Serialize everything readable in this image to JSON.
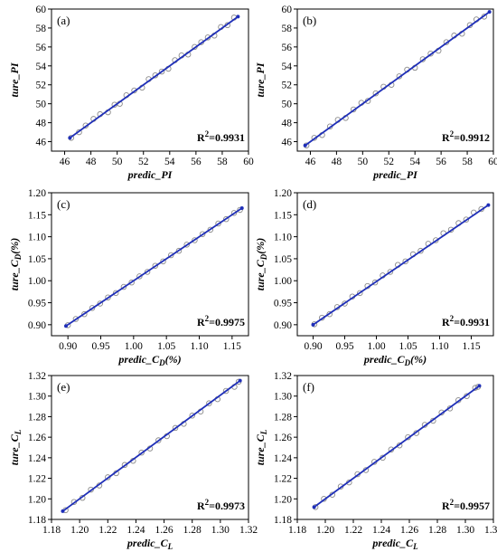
{
  "chart_data": [
    {
      "type": "scatter",
      "label": "(a)",
      "xlabel": "predic_PI",
      "ylabel": "ture_PI",
      "xlim": [
        45,
        60
      ],
      "ylim": [
        45,
        60
      ],
      "xticks": [
        46,
        48,
        50,
        52,
        54,
        56,
        58,
        60
      ],
      "yticks": [
        46,
        48,
        50,
        52,
        54,
        56,
        58,
        60
      ],
      "tick_labels_x": [
        "46",
        "48",
        "50",
        "52",
        "54",
        "56",
        "58",
        "60"
      ],
      "tick_labels_y": [
        "46",
        "48",
        "50",
        "52",
        "54",
        "56",
        "58",
        "60"
      ],
      "fit_line": [
        [
          46.4,
          46.4
        ],
        [
          59.2,
          59.2
        ]
      ],
      "r2_label": "R",
      "r2_sup": "2",
      "r2_value": "=0.9931",
      "grid": false,
      "points": [
        [
          46.5,
          46.4
        ],
        [
          47.1,
          47.0
        ],
        [
          47.6,
          47.7
        ],
        [
          48.2,
          48.4
        ],
        [
          48.7,
          48.9
        ],
        [
          49.3,
          49.1
        ],
        [
          49.8,
          49.9
        ],
        [
          50.2,
          50.0
        ],
        [
          50.7,
          50.9
        ],
        [
          51.3,
          51.4
        ],
        [
          51.9,
          51.7
        ],
        [
          52.4,
          52.6
        ],
        [
          52.9,
          53.0
        ],
        [
          53.4,
          53.4
        ],
        [
          53.9,
          53.7
        ],
        [
          54.4,
          54.6
        ],
        [
          54.9,
          55.1
        ],
        [
          55.4,
          55.2
        ],
        [
          55.9,
          56.0
        ],
        [
          56.4,
          56.5
        ],
        [
          56.9,
          57.0
        ],
        [
          57.4,
          57.2
        ],
        [
          57.9,
          58.1
        ],
        [
          58.4,
          58.3
        ],
        [
          58.9,
          59.1
        ]
      ]
    },
    {
      "type": "scatter",
      "label": "(b)",
      "xlabel": "predic_PI",
      "ylabel": "ture_PI",
      "xlim": [
        45,
        60
      ],
      "ylim": [
        45,
        60
      ],
      "xticks": [
        46,
        48,
        50,
        52,
        54,
        56,
        58,
        60
      ],
      "yticks": [
        46,
        48,
        50,
        52,
        54,
        56,
        58,
        60
      ],
      "tick_labels_x": [
        "46",
        "48",
        "50",
        "52",
        "54",
        "56",
        "58",
        "60"
      ],
      "tick_labels_y": [
        "46",
        "48",
        "50",
        "52",
        "54",
        "56",
        "58",
        "60"
      ],
      "fit_line": [
        [
          45.6,
          45.6
        ],
        [
          59.7,
          59.7
        ]
      ],
      "r2_label": "R",
      "r2_sup": "2",
      "r2_value": "=0.9912",
      "grid": false,
      "points": [
        [
          45.7,
          45.6
        ],
        [
          46.3,
          46.4
        ],
        [
          46.9,
          46.7
        ],
        [
          47.5,
          47.6
        ],
        [
          48.1,
          48.3
        ],
        [
          48.7,
          48.5
        ],
        [
          49.3,
          49.4
        ],
        [
          49.9,
          50.1
        ],
        [
          50.4,
          50.3
        ],
        [
          51.0,
          51.1
        ],
        [
          51.6,
          51.8
        ],
        [
          52.2,
          52.0
        ],
        [
          52.8,
          52.9
        ],
        [
          53.4,
          53.6
        ],
        [
          54.0,
          53.8
        ],
        [
          54.6,
          54.7
        ],
        [
          55.2,
          55.3
        ],
        [
          55.8,
          55.6
        ],
        [
          56.4,
          56.5
        ],
        [
          57.0,
          57.2
        ],
        [
          57.6,
          57.4
        ],
        [
          58.2,
          58.3
        ],
        [
          58.7,
          58.9
        ],
        [
          59.3,
          59.2
        ]
      ]
    },
    {
      "type": "scatter",
      "label": "(c)",
      "xlabel": "predic_C",
      "xlabel_sub": "D",
      "xlabel_tail": "(%)",
      "ylabel": "ture_C",
      "ylabel_sub": "D",
      "ylabel_tail": "(%)",
      "xlim": [
        0.875,
        1.175
      ],
      "ylim": [
        0.875,
        1.2
      ],
      "xticks": [
        0.9,
        0.95,
        1.0,
        1.05,
        1.1,
        1.15
      ],
      "yticks": [
        0.9,
        0.95,
        1.0,
        1.05,
        1.1,
        1.15,
        1.2
      ],
      "tick_labels_x": [
        "0.90",
        "0.95",
        "1.00",
        "1.05",
        "1.10",
        "1.15"
      ],
      "tick_labels_y": [
        "0.90",
        "0.95",
        "1.00",
        "1.05",
        "1.10",
        "1.15",
        "1.20"
      ],
      "fit_line": [
        [
          0.897,
          0.897
        ],
        [
          1.165,
          1.165
        ]
      ],
      "r2_label": "R",
      "r2_sup": "2",
      "r2_value": "=0.9975",
      "grid": false,
      "points": [
        [
          0.9,
          0.899
        ],
        [
          0.912,
          0.913
        ],
        [
          0.925,
          0.924
        ],
        [
          0.937,
          0.938
        ],
        [
          0.949,
          0.948
        ],
        [
          0.961,
          0.962
        ],
        [
          0.973,
          0.972
        ],
        [
          0.985,
          0.986
        ],
        [
          0.997,
          0.996
        ],
        [
          1.009,
          1.01
        ],
        [
          1.021,
          1.02
        ],
        [
          1.033,
          1.034
        ],
        [
          1.045,
          1.044
        ],
        [
          1.057,
          1.058
        ],
        [
          1.069,
          1.068
        ],
        [
          1.081,
          1.082
        ],
        [
          1.093,
          1.092
        ],
        [
          1.105,
          1.106
        ],
        [
          1.117,
          1.116
        ],
        [
          1.129,
          1.13
        ],
        [
          1.141,
          1.14
        ],
        [
          1.153,
          1.154
        ],
        [
          1.162,
          1.161
        ]
      ]
    },
    {
      "type": "scatter",
      "label": "(d)",
      "xlabel": "predic_C",
      "xlabel_sub": "D",
      "xlabel_tail": "(%)",
      "ylabel": "ture_C",
      "ylabel_sub": "D",
      "ylabel_tail": "(%)",
      "xlim": [
        0.875,
        1.185
      ],
      "ylim": [
        0.875,
        1.2
      ],
      "xticks": [
        0.9,
        0.95,
        1.0,
        1.05,
        1.1,
        1.15
      ],
      "yticks": [
        0.9,
        0.95,
        1.0,
        1.05,
        1.1,
        1.15,
        1.2
      ],
      "tick_labels_x": [
        "0.90",
        "0.95",
        "1.00",
        "1.05",
        "1.10",
        "1.15"
      ],
      "tick_labels_y": [
        "0.90",
        "0.95",
        "1.00",
        "1.05",
        "1.10",
        "1.15",
        "1.20"
      ],
      "fit_line": [
        [
          0.9,
          0.9
        ],
        [
          1.177,
          1.172
        ]
      ],
      "r2_label": "R",
      "r2_sup": "2",
      "r2_value": "=0.9931",
      "grid": false,
      "points": [
        [
          0.902,
          0.901
        ],
        [
          0.914,
          0.916
        ],
        [
          0.926,
          0.924
        ],
        [
          0.938,
          0.94
        ],
        [
          0.95,
          0.948
        ],
        [
          0.962,
          0.964
        ],
        [
          0.974,
          0.972
        ],
        [
          0.986,
          0.988
        ],
        [
          0.998,
          0.996
        ],
        [
          1.01,
          1.012
        ],
        [
          1.022,
          1.02
        ],
        [
          1.034,
          1.036
        ],
        [
          1.046,
          1.044
        ],
        [
          1.058,
          1.06
        ],
        [
          1.07,
          1.068
        ],
        [
          1.082,
          1.084
        ],
        [
          1.094,
          1.092
        ],
        [
          1.106,
          1.108
        ],
        [
          1.118,
          1.116
        ],
        [
          1.13,
          1.131
        ],
        [
          1.142,
          1.139
        ],
        [
          1.154,
          1.155
        ],
        [
          1.166,
          1.163
        ]
      ]
    },
    {
      "type": "scatter",
      "label": "(e)",
      "xlabel": "predic_C",
      "xlabel_sub": "L",
      "xlabel_tail": "",
      "ylabel": "ture_C",
      "ylabel_sub": "L",
      "ylabel_tail": "",
      "xlim": [
        1.18,
        1.32
      ],
      "ylim": [
        1.18,
        1.32
      ],
      "xticks": [
        1.18,
        1.2,
        1.22,
        1.24,
        1.26,
        1.28,
        1.3,
        1.32
      ],
      "yticks": [
        1.18,
        1.2,
        1.22,
        1.24,
        1.26,
        1.28,
        1.3,
        1.32
      ],
      "tick_labels_x": [
        "1.18",
        "1.20",
        "1.22",
        "1.24",
        "1.26",
        "1.28",
        "1.30",
        "1.32"
      ],
      "tick_labels_y": [
        "1.18",
        "1.20",
        "1.22",
        "1.24",
        "1.26",
        "1.28",
        "1.30",
        "1.32"
      ],
      "fit_line": [
        [
          1.188,
          1.188
        ],
        [
          1.314,
          1.315
        ]
      ],
      "r2_label": "R",
      "r2_sup": "2",
      "r2_value": "=0.9973",
      "grid": false,
      "points": [
        [
          1.19,
          1.189
        ],
        [
          1.196,
          1.197
        ],
        [
          1.202,
          1.201
        ],
        [
          1.208,
          1.209
        ],
        [
          1.214,
          1.213
        ],
        [
          1.22,
          1.221
        ],
        [
          1.226,
          1.225
        ],
        [
          1.232,
          1.233
        ],
        [
          1.238,
          1.237
        ],
        [
          1.244,
          1.245
        ],
        [
          1.25,
          1.249
        ],
        [
          1.256,
          1.257
        ],
        [
          1.262,
          1.261
        ],
        [
          1.268,
          1.269
        ],
        [
          1.274,
          1.273
        ],
        [
          1.28,
          1.281
        ],
        [
          1.286,
          1.285
        ],
        [
          1.292,
          1.293
        ],
        [
          1.298,
          1.297
        ],
        [
          1.304,
          1.305
        ],
        [
          1.31,
          1.309
        ],
        [
          1.313,
          1.314
        ]
      ]
    },
    {
      "type": "scatter",
      "label": "(f)",
      "xlabel": "predic_C",
      "xlabel_sub": "L",
      "xlabel_tail": "",
      "ylabel": "ture_C",
      "ylabel_sub": "L",
      "ylabel_tail": "",
      "xlim": [
        1.18,
        1.32
      ],
      "ylim": [
        1.18,
        1.32
      ],
      "xticks": [
        1.18,
        1.2,
        1.22,
        1.24,
        1.26,
        1.28,
        1.3,
        1.32
      ],
      "yticks": [
        1.18,
        1.2,
        1.22,
        1.24,
        1.26,
        1.28,
        1.3,
        1.32
      ],
      "tick_labels_x": [
        "1.18",
        "1.20",
        "1.22",
        "1.24",
        "1.26",
        "1.28",
        "1.30",
        "1.32"
      ],
      "tick_labels_y": [
        "1.18",
        "1.20",
        "1.22",
        "1.24",
        "1.26",
        "1.28",
        "1.30",
        "1.32"
      ],
      "fit_line": [
        [
          1.192,
          1.192
        ],
        [
          1.31,
          1.31
        ]
      ],
      "r2_label": "R",
      "r2_sup": "2",
      "r2_value": "=0.9957",
      "grid": false,
      "points": [
        [
          1.193,
          1.192
        ],
        [
          1.199,
          1.2
        ],
        [
          1.205,
          1.204
        ],
        [
          1.211,
          1.212
        ],
        [
          1.217,
          1.216
        ],
        [
          1.223,
          1.224
        ],
        [
          1.229,
          1.228
        ],
        [
          1.235,
          1.236
        ],
        [
          1.241,
          1.24
        ],
        [
          1.247,
          1.248
        ],
        [
          1.253,
          1.252
        ],
        [
          1.259,
          1.26
        ],
        [
          1.265,
          1.264
        ],
        [
          1.271,
          1.272
        ],
        [
          1.277,
          1.276
        ],
        [
          1.283,
          1.284
        ],
        [
          1.289,
          1.288
        ],
        [
          1.295,
          1.296
        ],
        [
          1.301,
          1.3
        ],
        [
          1.307,
          1.308
        ],
        [
          1.309,
          1.309
        ]
      ]
    }
  ],
  "colors": {
    "fit_line": "#1f2fb8",
    "marker": "#8a8a8a",
    "axis": "#000000"
  }
}
